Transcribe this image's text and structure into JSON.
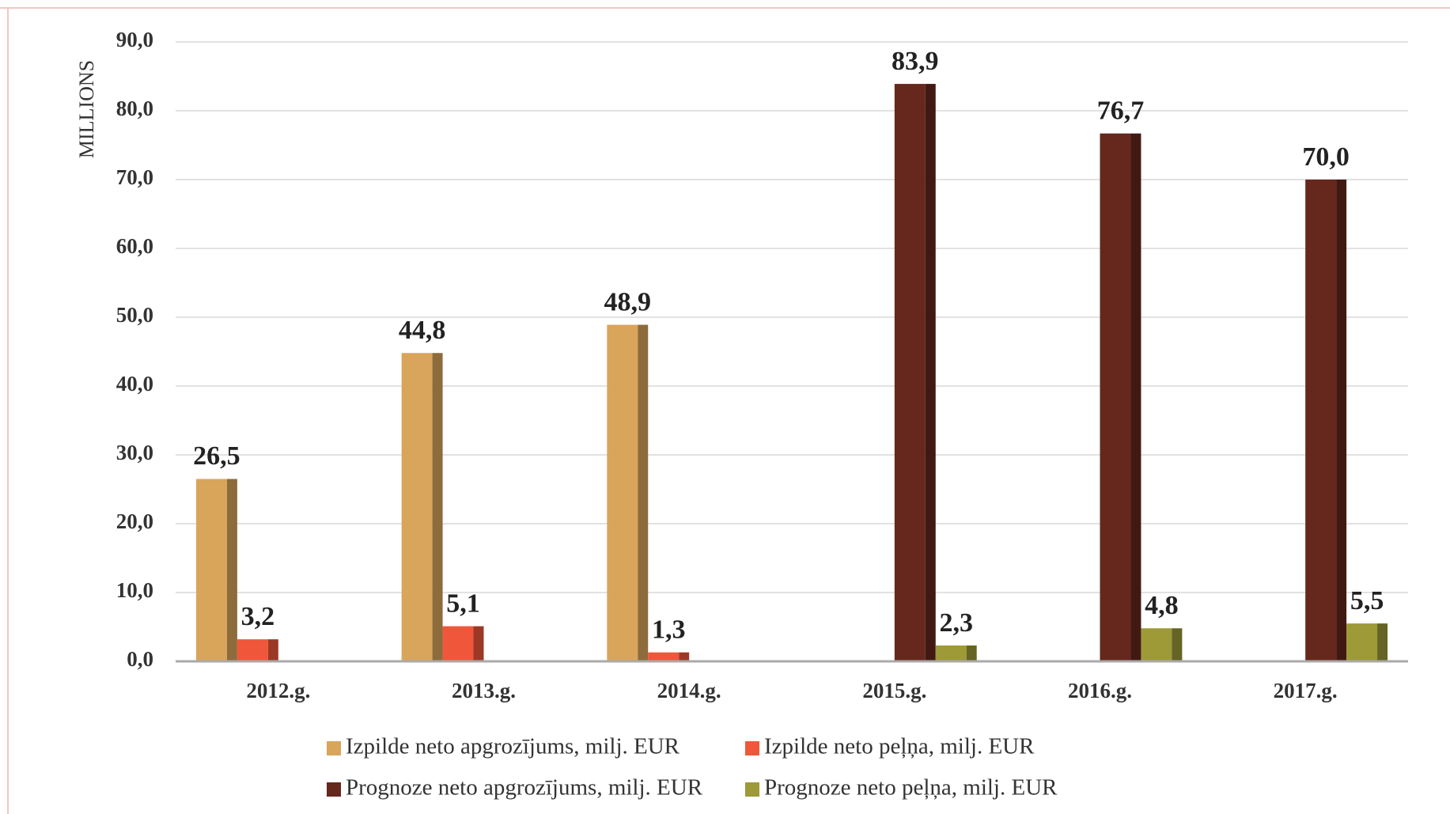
{
  "chart_data": {
    "type": "bar",
    "y_label": "MILLIONS",
    "categories": [
      "2012.g.",
      "2013.g.",
      "2014.g.",
      "2015.g.",
      "2016.g.",
      "2017.g."
    ],
    "series": [
      {
        "name": "Izpilde neto apgrozījums, milj. EUR",
        "color": "#d9a55b",
        "values": [
          26.5,
          44.8,
          48.9,
          null,
          null,
          null
        ],
        "value_labels": [
          "26,5",
          "44,8",
          "48,9",
          null,
          null,
          null
        ]
      },
      {
        "name": "Izpilde neto peļņa, milj. EUR",
        "color": "#f0573a",
        "values": [
          3.2,
          5.1,
          1.3,
          null,
          null,
          null
        ],
        "value_labels": [
          "3,2",
          "5,1",
          "1,3",
          null,
          null,
          null
        ]
      },
      {
        "name": "Prognoze neto apgrozījums, milj. EUR",
        "color": "#66271c",
        "values": [
          null,
          null,
          null,
          83.9,
          76.7,
          70.0
        ],
        "value_labels": [
          null,
          null,
          null,
          "83,9",
          "76,7",
          "70,0"
        ]
      },
      {
        "name": "Prognoze neto peļņa, milj. EUR",
        "color": "#9d9a37",
        "values": [
          null,
          null,
          null,
          2.3,
          4.8,
          5.5
        ],
        "value_labels": [
          null,
          null,
          null,
          "2,3",
          "4,8",
          "5,5"
        ]
      }
    ],
    "ylim": [
      0,
      90
    ],
    "yticks": [
      {
        "value": 0,
        "label": "0,0"
      },
      {
        "value": 10,
        "label": "10,0"
      },
      {
        "value": 20,
        "label": "20,0"
      },
      {
        "value": 30,
        "label": "30,0"
      },
      {
        "value": 40,
        "label": "40,0"
      },
      {
        "value": 50,
        "label": "50,0"
      },
      {
        "value": 60,
        "label": "60,0"
      },
      {
        "value": 70,
        "label": "70,0"
      },
      {
        "value": 80,
        "label": "80,0"
      },
      {
        "value": 90,
        "label": "90,0"
      }
    ],
    "grid": true,
    "legend": "bottom"
  }
}
